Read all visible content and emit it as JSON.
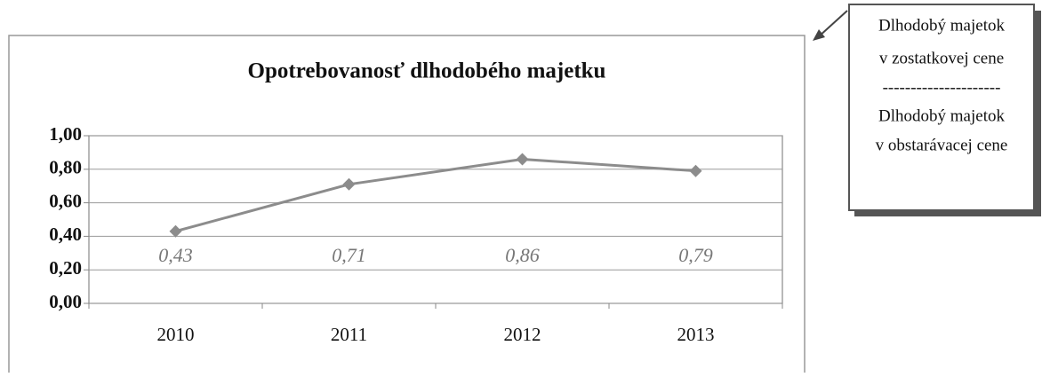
{
  "chart_data": {
    "type": "line",
    "title": "Opotrebovanosť dlhodobého majetku",
    "categories": [
      "2010",
      "2011",
      "2012",
      "2013"
    ],
    "series": [
      {
        "name": "Opotrebovanosť",
        "color": "#8c8c8c",
        "values": [
          0.43,
          0.71,
          0.86,
          0.79
        ],
        "value_labels": [
          "0,43",
          "0,71",
          "0,86",
          "0,79"
        ]
      }
    ],
    "ylim": [
      0,
      1
    ],
    "yticks": [
      {
        "value": 0,
        "label": "0,00"
      },
      {
        "value": 0.2,
        "label": "0,20"
      },
      {
        "value": 0.4,
        "label": "0,40"
      },
      {
        "value": 0.6,
        "label": "0,60"
      },
      {
        "value": 0.8,
        "label": "0,80"
      },
      {
        "value": 1,
        "label": "1,00"
      }
    ],
    "grid": true,
    "callout": [
      "Dlhodobý majetok",
      "v zostatkovej cene",
      "---------------------",
      "Dlhodobý majetok",
      "v obstarávacej cene"
    ]
  }
}
